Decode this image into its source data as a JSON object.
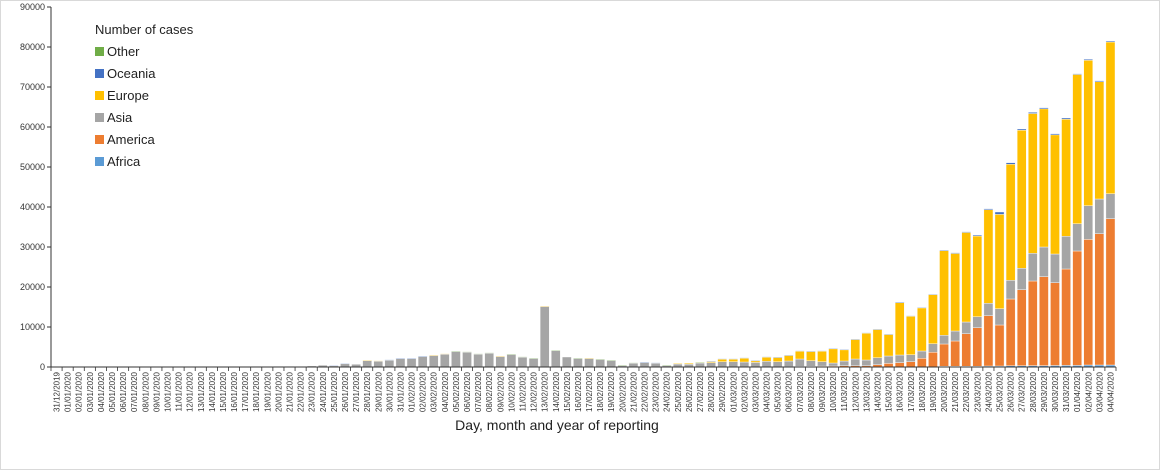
{
  "chart_data": {
    "type": "bar",
    "stacked": true,
    "title": "",
    "xlabel": "Day, month and year of reporting",
    "ylabel": "",
    "ylim": [
      0,
      90000
    ],
    "yticks": [
      "0",
      "10000",
      "20000",
      "30000",
      "40000",
      "50000",
      "60000",
      "70000",
      "80000",
      "90000"
    ],
    "legend_title": "Number of cases",
    "legend_position": "top-left",
    "categories": [
      "31/12/2019",
      "01/01/2020",
      "02/01/2020",
      "03/01/2020",
      "04/01/2020",
      "05/01/2020",
      "06/01/2020",
      "07/01/2020",
      "08/01/2020",
      "09/01/2020",
      "10/01/2020",
      "11/01/2020",
      "12/01/2020",
      "13/01/2020",
      "14/01/2020",
      "15/01/2020",
      "16/01/2020",
      "17/01/2020",
      "18/01/2020",
      "19/01/2020",
      "20/01/2020",
      "21/01/2020",
      "22/01/2020",
      "23/01/2020",
      "24/01/2020",
      "25/01/2020",
      "26/01/2020",
      "27/01/2020",
      "28/01/2020",
      "29/01/2020",
      "30/01/2020",
      "31/01/2020",
      "01/02/2020",
      "02/02/2020",
      "03/02/2020",
      "04/02/2020",
      "05/02/2020",
      "06/02/2020",
      "07/02/2020",
      "08/02/2020",
      "09/02/2020",
      "10/02/2020",
      "11/02/2020",
      "12/02/2020",
      "13/02/2020",
      "14/02/2020",
      "15/02/2020",
      "16/02/2020",
      "17/02/2020",
      "18/02/2020",
      "19/02/2020",
      "20/02/2020",
      "21/02/2020",
      "22/02/2020",
      "23/02/2020",
      "24/02/2020",
      "25/02/2020",
      "26/02/2020",
      "27/02/2020",
      "28/02/2020",
      "29/02/2020",
      "01/03/2020",
      "02/03/2020",
      "03/03/2020",
      "04/03/2020",
      "05/03/2020",
      "06/03/2020",
      "07/03/2020",
      "08/03/2020",
      "09/03/2020",
      "10/03/2020",
      "11/03/2020",
      "12/03/2020",
      "13/03/2020",
      "14/03/2020",
      "15/03/2020",
      "16/03/2020",
      "17/03/2020",
      "18/03/2020",
      "19/03/2020",
      "20/03/2020",
      "21/03/2020",
      "22/03/2020",
      "23/03/2020",
      "24/03/2020",
      "25/03/2020",
      "26/03/2020",
      "27/03/2020",
      "28/03/2020",
      "29/03/2020",
      "30/03/2020",
      "31/03/2020",
      "01/04/2020",
      "02/04/2020",
      "03/04/2020",
      "04/04/2020"
    ],
    "series": [
      {
        "name": "Africa",
        "color": "#5b9bd5",
        "values": [
          0,
          0,
          0,
          0,
          0,
          0,
          0,
          0,
          0,
          0,
          0,
          0,
          0,
          0,
          0,
          0,
          0,
          0,
          0,
          0,
          0,
          0,
          0,
          0,
          0,
          0,
          0,
          0,
          0,
          0,
          0,
          0,
          0,
          0,
          0,
          0,
          0,
          0,
          0,
          0,
          0,
          0,
          0,
          0,
          0,
          0,
          0,
          0,
          0,
          0,
          0,
          0,
          0,
          0,
          0,
          0,
          0,
          0,
          0,
          0,
          0,
          0,
          0,
          0,
          0,
          0,
          0,
          0,
          0,
          0,
          0,
          0,
          0,
          0,
          0,
          0,
          0,
          0,
          0,
          0,
          200,
          200,
          200,
          200,
          250,
          250,
          300,
          330,
          350,
          350,
          380,
          400,
          400,
          500,
          500,
          500
        ]
      },
      {
        "name": "America",
        "color": "#ed7d31",
        "values": [
          0,
          0,
          0,
          0,
          0,
          0,
          0,
          0,
          0,
          0,
          0,
          0,
          0,
          0,
          0,
          0,
          0,
          0,
          0,
          0,
          0,
          0,
          0,
          0,
          0,
          0,
          0,
          0,
          0,
          0,
          0,
          0,
          0,
          0,
          0,
          0,
          0,
          0,
          0,
          0,
          0,
          0,
          0,
          0,
          0,
          0,
          0,
          0,
          0,
          0,
          0,
          0,
          0,
          0,
          0,
          0,
          0,
          0,
          0,
          0,
          0,
          30,
          50,
          50,
          70,
          80,
          100,
          150,
          180,
          230,
          250,
          300,
          300,
          300,
          580,
          900,
          1100,
          1330,
          2170,
          3670,
          5550,
          6300,
          8130,
          9630,
          12580,
          10250,
          16700,
          19000,
          21150,
          22230,
          20700,
          24100,
          28600,
          31400,
          32830,
          36580
        ]
      },
      {
        "name": "Asia",
        "color": "#a5a5a5",
        "values": [
          27,
          0,
          0,
          0,
          17,
          0,
          15,
          0,
          0,
          0,
          0,
          0,
          1,
          1,
          0,
          4,
          4,
          17,
          136,
          19,
          151,
          140,
          97,
          259,
          440,
          400,
          880,
          670,
          1600,
          1480,
          1700,
          2100,
          2100,
          2650,
          2900,
          3200,
          3900,
          3750,
          3250,
          3500,
          2650,
          3180,
          2530,
          2200,
          15150,
          4100,
          2500,
          2200,
          2200,
          1950,
          1700,
          450,
          1000,
          1150,
          1000,
          450,
          750,
          700,
          1000,
          1100,
          1330,
          1300,
          1200,
          1100,
          1350,
          1250,
          1400,
          1850,
          1400,
          1100,
          750,
          1200,
          1700,
          1450,
          1750,
          1850,
          1900,
          1750,
          1830,
          2160,
          2170,
          2500,
          2920,
          2750,
          3090,
          4080,
          4670,
          5340,
          6920,
          7420,
          7170,
          8170,
          6830,
          8430,
          8670,
          6250
        ]
      },
      {
        "name": "Europe",
        "color": "#ffc000",
        "values": [
          0,
          0,
          0,
          0,
          0,
          0,
          0,
          0,
          0,
          0,
          0,
          0,
          0,
          0,
          0,
          0,
          0,
          0,
          0,
          0,
          0,
          0,
          0,
          0,
          0,
          0,
          0,
          0,
          150,
          100,
          0,
          0,
          0,
          0,
          100,
          130,
          0,
          0,
          0,
          0,
          100,
          0,
          0,
          0,
          100,
          0,
          0,
          0,
          50,
          0,
          0,
          0,
          0,
          0,
          0,
          0,
          170,
          220,
          150,
          300,
          680,
          680,
          1000,
          450,
          1080,
          1100,
          1420,
          1980,
          2320,
          2650,
          3570,
          2820,
          4900,
          6730,
          7070,
          5400,
          13050,
          9600,
          10770,
          12270,
          21130,
          19380,
          22380,
          20170,
          23410,
          23570,
          29010,
          34530,
          34950,
          34530,
          29780,
          29280,
          37300,
          36340,
          29330,
          37920
        ]
      },
      {
        "name": "Oceania",
        "color": "#4472c4",
        "values": [
          0,
          0,
          0,
          0,
          0,
          0,
          0,
          0,
          0,
          0,
          0,
          0,
          0,
          0,
          0,
          0,
          0,
          0,
          0,
          0,
          0,
          0,
          0,
          0,
          0,
          40,
          60,
          0,
          0,
          0,
          130,
          150,
          150,
          100,
          0,
          0,
          0,
          0,
          0,
          0,
          0,
          0,
          0,
          0,
          0,
          0,
          0,
          0,
          0,
          0,
          0,
          0,
          0,
          100,
          80,
          0,
          0,
          0,
          0,
          100,
          70,
          70,
          80,
          70,
          80,
          70,
          80,
          100,
          100,
          100,
          100,
          100,
          100,
          100,
          100,
          100,
          200,
          150,
          150,
          150,
          200,
          200,
          200,
          250,
          250,
          600,
          400,
          300,
          300,
          300,
          300,
          300,
          200,
          250,
          250,
          250
        ]
      },
      {
        "name": "Other",
        "color": "#70ad47",
        "values": [
          0,
          0,
          0,
          0,
          0,
          0,
          0,
          0,
          0,
          0,
          0,
          0,
          0,
          0,
          0,
          0,
          0,
          0,
          0,
          0,
          0,
          0,
          0,
          0,
          0,
          0,
          0,
          0,
          0,
          0,
          0,
          0,
          0,
          0,
          0,
          0,
          100,
          80,
          80,
          80,
          0,
          70,
          50,
          50,
          0,
          150,
          0,
          50,
          0,
          50,
          50,
          50,
          80,
          0,
          0,
          50,
          0,
          0,
          100,
          0,
          0,
          0,
          0,
          0,
          0,
          0,
          0,
          0,
          0,
          0,
          0,
          0,
          0,
          0,
          0,
          0,
          0,
          0,
          0,
          0,
          0,
          0,
          0,
          0,
          0,
          0,
          0,
          0,
          0,
          0,
          0,
          0,
          0,
          0,
          0,
          0
        ]
      }
    ],
    "legend_order": [
      "Other",
      "Oceania",
      "Europe",
      "Asia",
      "America",
      "Africa"
    ]
  }
}
